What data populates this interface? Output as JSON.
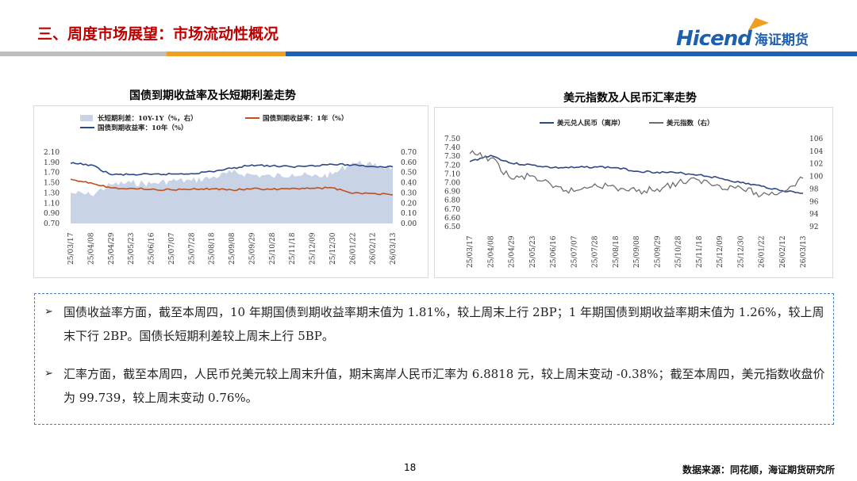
{
  "header": {
    "title": "三、周度市场展望：市场流动性概况"
  },
  "logo": {
    "en": "Hicend",
    "cn": "海证期货"
  },
  "colors": {
    "red": "#c00000",
    "blue": "#1f5fb0",
    "orange": "#f0a020",
    "navy": "#2e4a86",
    "gray": "#6e6e6e",
    "area": "#c9d3e6",
    "rust": "#c0501e"
  },
  "chart_data": [
    {
      "type": "line",
      "title": "国债到期收益率及长短期利差走势",
      "legend": [
        "长短期利差：10Y-1Y（%，右）",
        "国债到期收益率：1年（%）",
        "国债到期收益率：10年（%）"
      ],
      "x": [
        "25/03/17",
        "25/04/08",
        "25/04/29",
        "25/05/23",
        "25/06/16",
        "25/07/07",
        "25/07/28",
        "25/08/18",
        "25/09/08",
        "25/09/29",
        "25/10/28",
        "25/11/18",
        "25/12/09",
        "25/12/30",
        "26/01/22",
        "26/02/12",
        "26/03/13"
      ],
      "left_ticks": [
        "2.10",
        "1.90",
        "1.70",
        "1.50",
        "1.30",
        "1.10",
        "0.90",
        "0.70"
      ],
      "right_ticks": [
        "0.70",
        "0.60",
        "0.50",
        "0.40",
        "0.30",
        "0.20",
        "0.10",
        "0.00"
      ],
      "ylim_left": [
        0.7,
        2.1
      ],
      "ylim_right": [
        0.0,
        0.7
      ],
      "series": [
        {
          "name": "国债到期收益率：10年（%）",
          "axis": "left",
          "values": [
            1.88,
            1.85,
            1.66,
            1.66,
            1.66,
            1.67,
            1.68,
            1.72,
            1.78,
            1.85,
            1.83,
            1.81,
            1.84,
            1.86,
            1.85,
            1.82,
            1.81
          ]
        },
        {
          "name": "国债到期收益率：1年（%）",
          "axis": "left",
          "values": [
            1.57,
            1.5,
            1.4,
            1.39,
            1.37,
            1.36,
            1.37,
            1.38,
            1.36,
            1.38,
            1.37,
            1.39,
            1.39,
            1.4,
            1.29,
            1.29,
            1.26
          ]
        },
        {
          "name": "长短期利差：10Y-1Y（%，右）",
          "axis": "right",
          "values": [
            0.3,
            0.28,
            0.38,
            0.4,
            0.39,
            0.42,
            0.42,
            0.45,
            0.5,
            0.48,
            0.46,
            0.49,
            0.46,
            0.48,
            0.6,
            0.57,
            0.55
          ]
        }
      ]
    },
    {
      "type": "line",
      "title": "美元指数及人民币汇率走势",
      "legend": [
        "美元兑人民币（离岸）",
        "美元指数（右）"
      ],
      "x": [
        "25/03/17",
        "25/04/08",
        "25/04/29",
        "25/05/23",
        "25/06/16",
        "25/07/07",
        "25/07/28",
        "25/08/18",
        "25/09/08",
        "25/09/29",
        "25/10/28",
        "25/11/18",
        "25/12/09",
        "25/12/30",
        "26/01/22",
        "26/02/12",
        "26/03/13"
      ],
      "left_ticks": [
        "7.50",
        "7.40",
        "7.30",
        "7.20",
        "7.10",
        "7.00",
        "6.90",
        "6.80",
        "6.70",
        "6.60",
        "6.50"
      ],
      "right_ticks": [
        "106",
        "104",
        "102",
        "100",
        "98",
        "96",
        "94",
        "92"
      ],
      "ylim_left": [
        6.5,
        7.5
      ],
      "ylim_right": [
        92,
        106
      ],
      "series": [
        {
          "name": "美元兑人民币（离岸）",
          "axis": "left",
          "values": [
            7.24,
            7.31,
            7.22,
            7.2,
            7.17,
            7.17,
            7.18,
            7.17,
            7.13,
            7.12,
            7.11,
            7.09,
            7.05,
            7.0,
            6.96,
            6.91,
            6.88
          ]
        },
        {
          "name": "美元指数（右）",
          "axis": "right",
          "values": [
            103.6,
            102.9,
            99.6,
            100.1,
            98.2,
            97.6,
            98.8,
            98.2,
            97.6,
            98.0,
            99.0,
            99.4,
            98.5,
            98.2,
            97.0,
            97.6,
            99.7
          ]
        }
      ]
    }
  ],
  "notes": {
    "p1": "国债收益率方面，截至本周四，10 年期国债到期收益率期末值为 1.81%，较上周末上行 2BP；1 年期国债到期收益率期末值为 1.26%，较上周末下行 2BP。国债长短期利差较上周末上行 5BP。",
    "p2": "汇率方面，截至本周四，人民币兑美元较上周末升值，期末离岸人民币汇率为 6.8818 元，较上周末变动 -0.38%；截至本周四，美元指数收盘价为 99.739，较上周末变动 0.76%。",
    "arrow": "➢"
  },
  "footer": {
    "page": "18",
    "source": "数据来源：同花顺，海证期货研究所"
  }
}
